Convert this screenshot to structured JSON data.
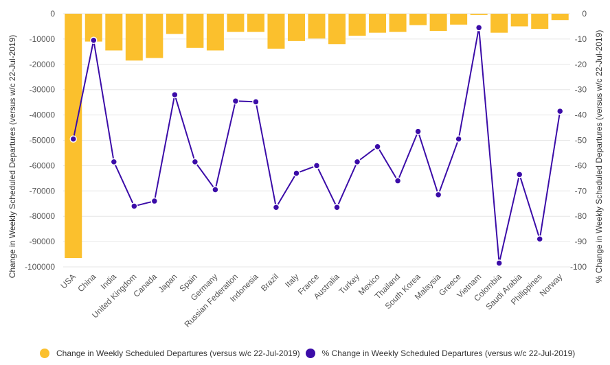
{
  "chart_data": {
    "type": "bar+line",
    "categories": [
      "USA",
      "China",
      "India",
      "United Kingdom",
      "Canada",
      "Japan",
      "Spain",
      "Germany",
      "Russian Federation",
      "Indonesia",
      "Brazil",
      "Italy",
      "France",
      "Australia",
      "Turkey",
      "Mexico",
      "Thailand",
      "South Korea",
      "Malaysia",
      "Greece",
      "Vietnam",
      "Colombia",
      "Saudi Arabia",
      "Philippines",
      "Norway"
    ],
    "series": [
      {
        "name": "Change in Weekly Scheduled Departures (versus w/c 22-Jul-2019)",
        "type": "bar",
        "axis": "left",
        "color": "#FBC02D",
        "values": [
          -96500,
          -11000,
          -14500,
          -18500,
          -17500,
          -8000,
          -13500,
          -14500,
          -7200,
          -7200,
          -13800,
          -10800,
          -9800,
          -12000,
          -8700,
          -7500,
          -7200,
          -4500,
          -6800,
          -4300,
          -500,
          -7500,
          -5000,
          -6000,
          -2500
        ]
      },
      {
        "name": "% Change in Weekly Scheduled Departures (versus w/c 22-Jul-2019)",
        "type": "line",
        "axis": "right",
        "color": "#3B0CA8",
        "values": [
          -49.5,
          -10.5,
          -58.5,
          -76,
          -74,
          -32,
          -58.5,
          -69.5,
          -34.5,
          -34.8,
          -76.5,
          -63,
          -60,
          -76.5,
          -58.5,
          -52.5,
          -66,
          -46.5,
          -71.5,
          -49.5,
          -5.5,
          -98.5,
          -63.5,
          -89,
          -38.5
        ]
      }
    ],
    "y_left": {
      "label": "Change in Weekly Scheduled Departures (versus w/c 22-Jul-2019)",
      "ylim": [
        -100000,
        0
      ],
      "ticks": [
        0,
        -10000,
        -20000,
        -30000,
        -40000,
        -50000,
        -60000,
        -70000,
        -80000,
        -90000,
        -100000
      ]
    },
    "y_right": {
      "label": "% Change in Weekly Scheduled Departures (versus w/c 22-Jul-2019)",
      "ylim": [
        -100,
        0
      ],
      "ticks": [
        0,
        -10,
        -20,
        -30,
        -40,
        -50,
        -60,
        -70,
        -80,
        -90,
        -100
      ]
    },
    "grid": true,
    "legend": "bottom"
  }
}
